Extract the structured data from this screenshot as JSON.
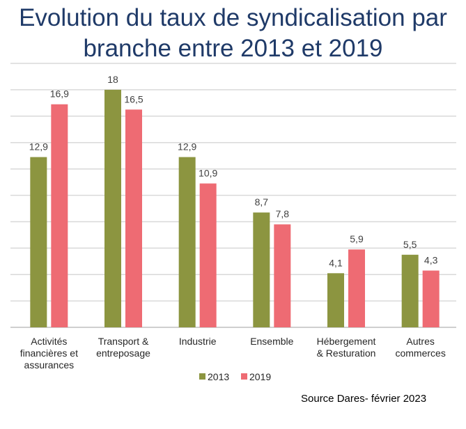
{
  "chart_data": {
    "type": "bar",
    "title": "Evolution du taux de syndicalisation par branche entre 2013 et 2019",
    "categories": [
      [
        "Activités",
        "financières et",
        "assurances"
      ],
      [
        "Transport &",
        "entreposage"
      ],
      [
        "Industrie"
      ],
      [
        "Ensemble"
      ],
      [
        "Hébergement",
        "& Resturation"
      ],
      [
        "Autres",
        "commerces"
      ]
    ],
    "series": [
      {
        "name": "2013",
        "color": "#8c9540",
        "values": [
          12.9,
          18,
          12.9,
          8.7,
          4.1,
          5.5
        ],
        "labels": [
          "12,9",
          "18",
          "12,9",
          "8,7",
          "4,1",
          "5,5"
        ]
      },
      {
        "name": "2019",
        "color": "#ee6b73",
        "values": [
          16.9,
          16.5,
          10.9,
          7.8,
          5.9,
          4.3
        ],
        "labels": [
          "16,9",
          "16,5",
          "10,9",
          "7,8",
          "5,9",
          "4,3"
        ]
      }
    ],
    "ylim": [
      0,
      20
    ],
    "grid_step": 2,
    "grid": true,
    "legend": "bottom",
    "source": "Source Dares- février 2023"
  }
}
